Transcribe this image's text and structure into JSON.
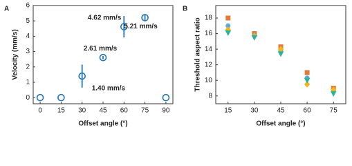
{
  "chart_data": [
    {
      "type": "scatter",
      "panel": "A",
      "xlabel": "Offset angle (°)",
      "ylabel": "Velocity (mm/s)",
      "x": [
        0,
        15,
        30,
        45,
        60,
        75,
        90
      ],
      "values": [
        0,
        0,
        1.4,
        2.61,
        4.62,
        5.21,
        0
      ],
      "errors": [
        0,
        0,
        0.75,
        0.1,
        0.7,
        0.2,
        0
      ],
      "value_labels": [
        null,
        null,
        "1.40 mm/s",
        "2.61 mm/s",
        "4.62 mm/s",
        "5.21 mm/s",
        null
      ],
      "color": "#1f77b4",
      "xlim": [
        -5,
        95
      ],
      "ylim": [
        -0.4,
        6
      ],
      "xticks": [
        0,
        15,
        30,
        45,
        60,
        75,
        90
      ],
      "yticks": [
        0,
        1,
        2,
        3,
        4,
        5,
        6
      ]
    },
    {
      "type": "scatter",
      "panel": "B",
      "xlabel": "Offset angle (°)",
      "ylabel": "Threshold aspect ratio",
      "x": [
        15,
        30,
        45,
        60,
        75
      ],
      "series": [
        {
          "color": "#e07b39",
          "marker": "square",
          "values": [
            18,
            16,
            14.3,
            11,
            9
          ]
        },
        {
          "color": "#5aa9d6",
          "marker": "circle",
          "values": [
            17,
            15.8,
            13.8,
            10.3,
            8.6
          ]
        },
        {
          "color": "#f2b51c",
          "marker": "diamond",
          "values": [
            16.5,
            15.7,
            14,
            9.5,
            8.8
          ]
        },
        {
          "color": "#2bb39a",
          "marker": "triangle",
          "values": [
            16.1,
            15.5,
            13.4,
            10,
            8.3
          ]
        }
      ],
      "xlim": [
        8,
        82
      ],
      "ylim": [
        7,
        19.6
      ],
      "xticks": [
        15,
        30,
        45,
        60,
        75
      ],
      "yticks": [
        8,
        10,
        12,
        14,
        16,
        18
      ]
    }
  ]
}
